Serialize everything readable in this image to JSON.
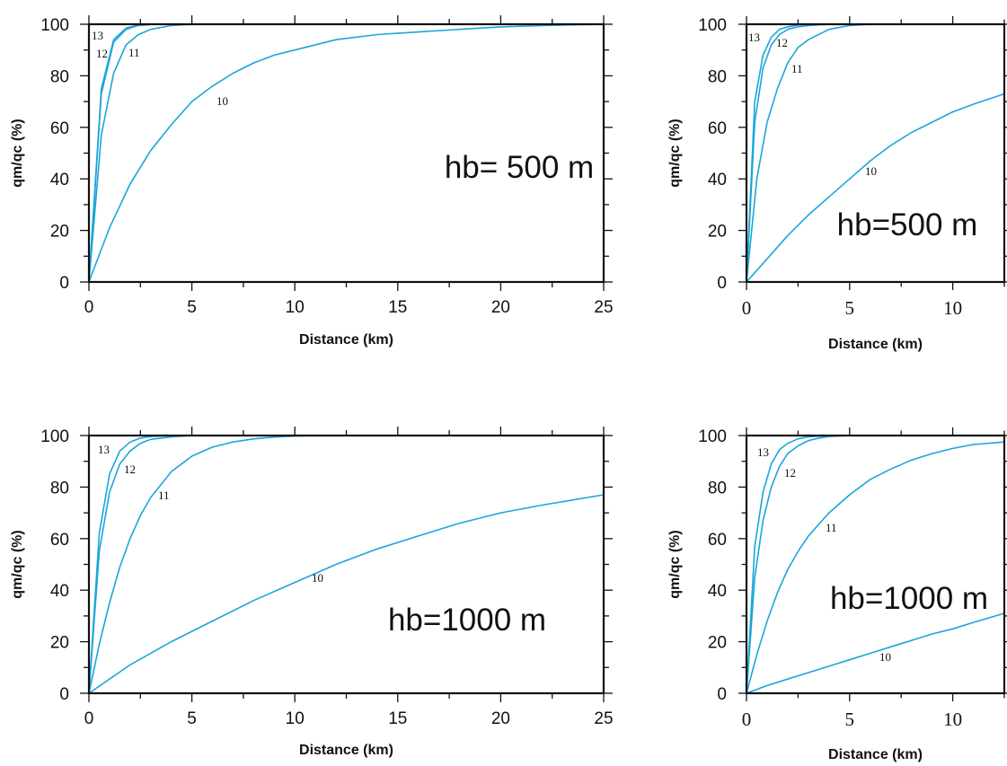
{
  "colors": {
    "curve": "#1aa6da",
    "axis": "#111111",
    "text": "#111111"
  },
  "chart_data": [
    {
      "type": "line",
      "annotation": "hb= 500 m",
      "xlabel": "Distance (km)",
      "ylabel": "qm/qc (%)",
      "xlim": [
        0,
        25
      ],
      "ylim": [
        0,
        100
      ],
      "xticks": [
        "0",
        "5",
        "10",
        "15",
        "20",
        "25"
      ],
      "yticks": [
        "0",
        "20",
        "40",
        "60",
        "80",
        "100"
      ],
      "grid": false,
      "series": [
        {
          "name": "10",
          "x": [
            0,
            1,
            2,
            3,
            4,
            5,
            6,
            7,
            8,
            9,
            10,
            12,
            14,
            16,
            18,
            20,
            22,
            25
          ],
          "y": [
            0,
            21,
            38,
            51,
            61,
            70,
            76,
            81,
            85,
            88,
            90,
            94,
            96,
            97,
            98,
            99,
            99.5,
            100
          ]
        },
        {
          "name": "11",
          "x": [
            0,
            0.6,
            1.2,
            1.8,
            2.4,
            3,
            4,
            5
          ],
          "y": [
            0,
            57,
            81,
            92,
            96,
            98,
            99.5,
            100
          ]
        },
        {
          "name": "12",
          "x": [
            0,
            0.6,
            1.2,
            1.8,
            2.4,
            3.2
          ],
          "y": [
            0,
            73,
            93,
            98,
            99.5,
            100
          ]
        },
        {
          "name": "13",
          "x": [
            0,
            0.6,
            1.2,
            1.8,
            2.4,
            3
          ],
          "y": [
            0,
            75,
            94,
            98.5,
            99.7,
            100
          ]
        }
      ]
    },
    {
      "type": "line",
      "annotation": "hb=500 m",
      "xlabel": "Distance (km)",
      "ylabel": "qm/qc (%)",
      "xlim": [
        0,
        12.5
      ],
      "ylim": [
        0,
        100
      ],
      "xticks": [
        "0",
        "5",
        "10"
      ],
      "yticks": [
        "0",
        "20",
        "40",
        "60",
        "80",
        "100"
      ],
      "grid": false,
      "series": [
        {
          "name": "10",
          "x": [
            0,
            1,
            2,
            3,
            4,
            5,
            6,
            7,
            8,
            9,
            10,
            11,
            12.5
          ],
          "y": [
            0,
            9,
            18,
            26,
            33,
            40,
            47,
            53,
            58,
            62,
            66,
            69,
            73
          ]
        },
        {
          "name": "11",
          "x": [
            0,
            0.5,
            1,
            1.5,
            2,
            2.5,
            3,
            4,
            5,
            6
          ],
          "y": [
            0,
            40,
            62,
            75,
            85,
            91,
            94,
            98,
            99.5,
            100
          ]
        },
        {
          "name": "12",
          "x": [
            0,
            0.4,
            0.8,
            1.2,
            1.6,
            2,
            2.5,
            3,
            4
          ],
          "y": [
            0,
            62,
            83,
            92,
            96,
            98,
            99,
            99.5,
            100
          ]
        },
        {
          "name": "13",
          "x": [
            0,
            0.4,
            0.8,
            1.2,
            1.6,
            2,
            2.5,
            3
          ],
          "y": [
            0,
            70,
            88,
            95,
            98,
            99,
            99.7,
            100
          ]
        }
      ]
    },
    {
      "type": "line",
      "annotation": "hb=1000 m",
      "xlabel": "Distance (km)",
      "ylabel": "qm/qc (%)",
      "xlim": [
        0,
        25
      ],
      "ylim": [
        0,
        100
      ],
      "xticks": [
        "0",
        "5",
        "10",
        "15",
        "20",
        "25"
      ],
      "yticks": [
        "0",
        "20",
        "40",
        "60",
        "80",
        "100"
      ],
      "grid": false,
      "series": [
        {
          "name": "10",
          "x": [
            0,
            2,
            4,
            6,
            8,
            10,
            12,
            14,
            16,
            18,
            20,
            22,
            25
          ],
          "y": [
            0,
            11,
            20,
            28,
            36,
            43,
            50,
            56,
            61,
            66,
            70,
            73,
            77
          ]
        },
        {
          "name": "11",
          "x": [
            0,
            0.5,
            1,
            1.5,
            2,
            2.5,
            3,
            4,
            5,
            6,
            7,
            8,
            9,
            10,
            11
          ],
          "y": [
            0,
            19,
            35,
            49,
            60,
            69,
            76,
            86,
            92,
            95.5,
            97.5,
            98.7,
            99.4,
            99.8,
            100
          ]
        },
        {
          "name": "12",
          "x": [
            0,
            0.5,
            1,
            1.5,
            2,
            2.5,
            3,
            4,
            5
          ],
          "y": [
            0,
            55,
            78,
            89,
            94,
            97,
            98.5,
            99.5,
            100
          ]
        },
        {
          "name": "13",
          "x": [
            0,
            0.5,
            1,
            1.5,
            2,
            2.5,
            3,
            4
          ],
          "y": [
            0,
            62,
            85,
            94,
            97.5,
            99,
            99.6,
            100
          ]
        }
      ]
    },
    {
      "type": "line",
      "annotation": "hb=1000 m",
      "xlabel": "Distance (km)",
      "ylabel": "qm/qc (%)",
      "xlim": [
        0,
        12.5
      ],
      "ylim": [
        0,
        100
      ],
      "xticks": [
        "0",
        "5",
        "10"
      ],
      "yticks": [
        "0",
        "20",
        "40",
        "60",
        "80",
        "100"
      ],
      "grid": false,
      "series": [
        {
          "name": "10",
          "x": [
            0,
            1,
            2,
            3,
            4,
            5,
            6,
            7,
            8,
            9,
            10,
            11,
            12.5
          ],
          "y": [
            0,
            3,
            5.5,
            8,
            10.5,
            13,
            15.5,
            18,
            20.5,
            23,
            25,
            27.5,
            31
          ]
        },
        {
          "name": "11",
          "x": [
            0,
            0.5,
            1,
            1.5,
            2,
            2.5,
            3,
            4,
            5,
            6,
            7,
            8,
            9,
            10,
            11,
            12.5
          ],
          "y": [
            0,
            15,
            28,
            39,
            48,
            55,
            61,
            70,
            77,
            83,
            87,
            90.5,
            93,
            95,
            96.5,
            97.5
          ]
        },
        {
          "name": "12",
          "x": [
            0,
            0.4,
            0.8,
            1.2,
            1.6,
            2,
            2.5,
            3,
            3.5,
            4,
            5
          ],
          "y": [
            0,
            45,
            67,
            80,
            88,
            93,
            96,
            98,
            99,
            99.6,
            100
          ]
        },
        {
          "name": "13",
          "x": [
            0,
            0.4,
            0.8,
            1.2,
            1.6,
            2,
            2.5,
            3,
            4
          ],
          "y": [
            0,
            57,
            78,
            89,
            94.5,
            97,
            98.7,
            99.5,
            100
          ]
        }
      ]
    }
  ]
}
